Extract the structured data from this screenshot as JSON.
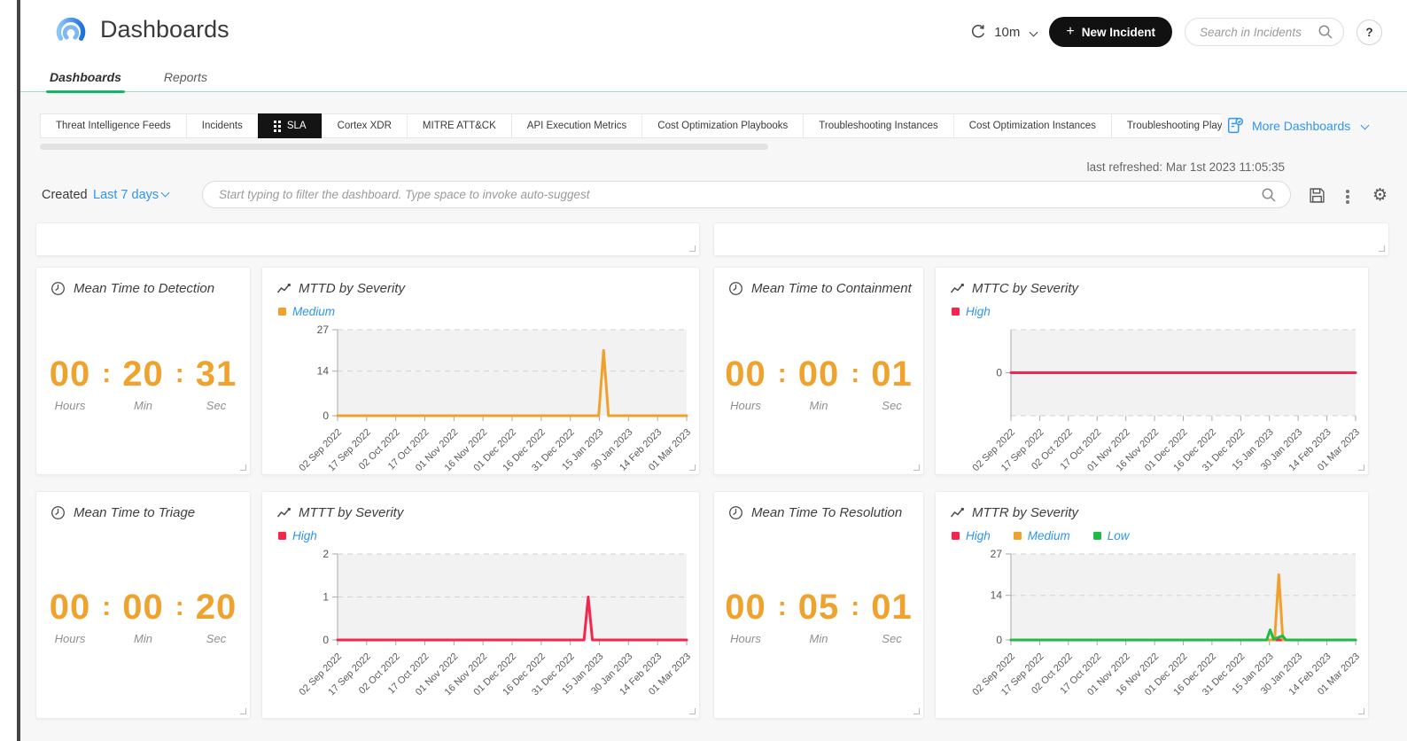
{
  "header": {
    "title": "Dashboards",
    "refresh_interval": "10m",
    "plus": "+",
    "new_incident_label": "New Incident",
    "search_placeholder": "Search in Incidents",
    "help_label": "?"
  },
  "main_tabs": {
    "items": [
      {
        "label": "Dashboards",
        "active": true
      },
      {
        "label": "Reports",
        "active": false
      }
    ]
  },
  "dashboard_tabs": {
    "items": [
      {
        "label": "Threat Intelligence Feeds",
        "active": false
      },
      {
        "label": "Incidents",
        "active": false
      },
      {
        "label": "SLA",
        "active": true
      },
      {
        "label": "Cortex XDR",
        "active": false
      },
      {
        "label": "MITRE ATT&CK",
        "active": false
      },
      {
        "label": "API Execution Metrics",
        "active": false
      },
      {
        "label": "Cost Optimization Playbooks",
        "active": false
      },
      {
        "label": "Troubleshooting Instances",
        "active": false
      },
      {
        "label": "Cost Optimization Instances",
        "active": false
      },
      {
        "label": "Troubleshooting Playbo",
        "active": false
      }
    ],
    "more_label": "More Dashboards"
  },
  "toolbar": {
    "last_refreshed": "last refreshed: Mar 1st 2023 11:05:35",
    "created_label": "Created",
    "created_value": "Last 7 days",
    "filter_placeholder": "Start typing to filter the dashboard. Type space to invoke auto-suggest"
  },
  "widgets": {
    "colon": ":",
    "timers": [
      {
        "title": "Mean Time to Detection",
        "values": [
          "00",
          "20",
          "31"
        ],
        "units": [
          "Hours",
          "Min",
          "Sec"
        ]
      },
      {
        "title": "Mean Time to Containment",
        "values": [
          "00",
          "00",
          "01"
        ],
        "units": [
          "Hours",
          "Min",
          "Sec"
        ]
      },
      {
        "title": "Mean Time to Triage",
        "values": [
          "00",
          "00",
          "20"
        ],
        "units": [
          "Hours",
          "Min",
          "Sec"
        ]
      },
      {
        "title": "Mean Time To Resolution",
        "values": [
          "00",
          "05",
          "01"
        ],
        "units": [
          "Hours",
          "Min",
          "Sec"
        ]
      }
    ]
  },
  "colors": {
    "accent_blue": "#2f95ef",
    "digit_orange": "#efa22d",
    "series_orange": "#f0a12c",
    "series_red": "#f5264e",
    "series_green": "#21ba45",
    "tab_active_bg": "#141414",
    "active_tab_underline": "#12b76a"
  },
  "chart_data": [
    {
      "type": "line",
      "title": "MTTD by Severity",
      "x": [
        "02 Sep 2022",
        "17 Sep 2022",
        "02 Oct 2022",
        "17 Oct 2022",
        "01 Nov 2022",
        "16 Nov 2022",
        "01 Dec 2022",
        "16 Dec 2022",
        "31 Dec 2022",
        "15 Jan 2023",
        "30 Jan 2023",
        "14 Feb 2023",
        "01 Mar 2023"
      ],
      "xlabel": "",
      "ylabel": "",
      "ylim": [
        0,
        27
      ],
      "yticks": [
        0,
        14,
        27
      ],
      "gridlines": [
        14,
        27
      ],
      "legend_position": "top-left",
      "legend": [
        {
          "name": "Medium",
          "color": "#f0a12c"
        }
      ],
      "series": [
        {
          "name": "Medium",
          "color": "#f0a12c",
          "points": [
            [
              0,
              0
            ],
            [
              0.748,
              0
            ],
            [
              0.762,
              20.5
            ],
            [
              0.776,
              0
            ],
            [
              1,
              0
            ]
          ]
        }
      ]
    },
    {
      "type": "line",
      "title": "MTTC by Severity",
      "x": [
        "02 Sep 2022",
        "17 Sep 2022",
        "02 Oct 2022",
        "17 Oct 2022",
        "01 Nov 2022",
        "16 Nov 2022",
        "01 Dec 2022",
        "16 Dec 2022",
        "31 Dec 2022",
        "15 Jan 2023",
        "30 Jan 2023",
        "14 Feb 2023",
        "01 Mar 2023"
      ],
      "xlabel": "",
      "ylabel": "",
      "ylim": [
        -1.15,
        1.15
      ],
      "yticks": [
        0
      ],
      "gridlines": [
        1.15,
        -1.15
      ],
      "legend_position": "top-left",
      "legend": [
        {
          "name": "High",
          "color": "#f5264e"
        }
      ],
      "series": [
        {
          "name": "High",
          "color": "#f5264e",
          "points": [
            [
              0,
              0
            ],
            [
              1,
              0
            ]
          ]
        }
      ]
    },
    {
      "type": "line",
      "title": "MTTT by Severity",
      "x": [
        "02 Sep 2022",
        "17 Sep 2022",
        "02 Oct 2022",
        "17 Oct 2022",
        "01 Nov 2022",
        "16 Nov 2022",
        "01 Dec 2022",
        "16 Dec 2022",
        "31 Dec 2022",
        "15 Jan 2023",
        "30 Jan 2023",
        "14 Feb 2023",
        "01 Mar 2023"
      ],
      "xlabel": "",
      "ylabel": "",
      "ylim": [
        0,
        2
      ],
      "yticks": [
        0,
        1,
        2
      ],
      "gridlines": [
        1,
        2
      ],
      "legend_position": "top-left",
      "legend": [
        {
          "name": "High",
          "color": "#f5264e"
        }
      ],
      "series": [
        {
          "name": "High",
          "color": "#f5264e",
          "points": [
            [
              0,
              0
            ],
            [
              0.706,
              0
            ],
            [
              0.718,
              1
            ],
            [
              0.73,
              0
            ],
            [
              1,
              0
            ]
          ]
        }
      ]
    },
    {
      "type": "line",
      "title": "MTTR by Severity",
      "x": [
        "02 Sep 2022",
        "17 Sep 2022",
        "02 Oct 2022",
        "17 Oct 2022",
        "01 Nov 2022",
        "16 Nov 2022",
        "01 Dec 2022",
        "16 Dec 2022",
        "31 Dec 2022",
        "15 Jan 2023",
        "30 Jan 2023",
        "14 Feb 2023",
        "01 Mar 2023"
      ],
      "xlabel": "",
      "ylabel": "",
      "ylim": [
        0,
        27
      ],
      "yticks": [
        0,
        14,
        27
      ],
      "gridlines": [
        14,
        27
      ],
      "legend_position": "top-left",
      "legend": [
        {
          "name": "High",
          "color": "#f5264e"
        },
        {
          "name": "Medium",
          "color": "#f0a12c"
        },
        {
          "name": "Low",
          "color": "#21ba45"
        }
      ],
      "series": [
        {
          "name": "High",
          "color": "#f5264e",
          "points": [
            [
              0,
              0
            ],
            [
              1,
              0
            ]
          ]
        },
        {
          "name": "Medium",
          "color": "#f0a12c",
          "points": [
            [
              0,
              0
            ],
            [
              0.765,
              0
            ],
            [
              0.777,
              20.5
            ],
            [
              0.789,
              0
            ],
            [
              1,
              0
            ]
          ]
        },
        {
          "name": "Low",
          "color": "#21ba45",
          "points": [
            [
              0,
              0
            ],
            [
              0.742,
              0
            ],
            [
              0.752,
              3.2
            ],
            [
              0.762,
              0.2
            ],
            [
              0.788,
              1.3
            ],
            [
              0.798,
              0
            ],
            [
              1,
              0
            ]
          ]
        }
      ]
    }
  ]
}
